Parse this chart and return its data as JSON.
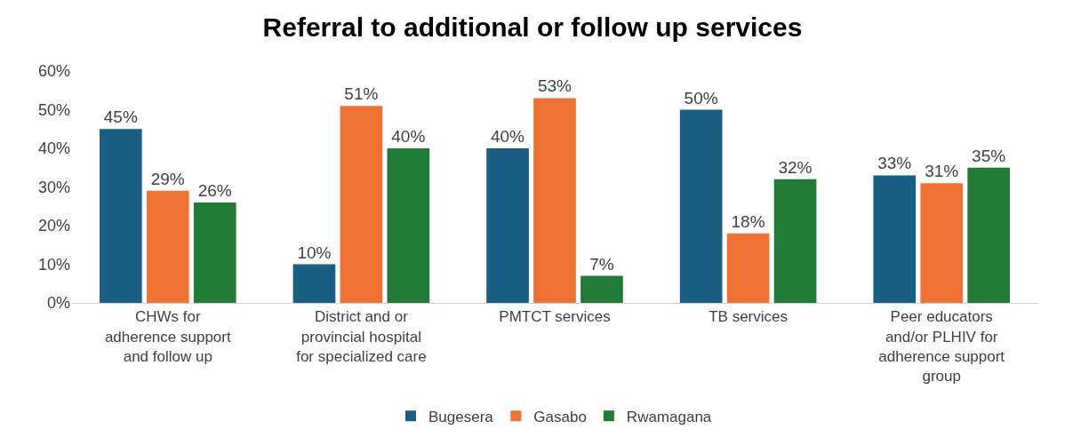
{
  "chart_data": {
    "type": "bar",
    "title": "Referral to additional or follow up services",
    "categories": [
      "CHWs for\nadherence support\nand follow up",
      "District and or\nprovincial hospital\nfor specialized care",
      "PMTCT services",
      "TB services",
      "Peer educators\nand/or PLHIV for\nadherence support\ngroup"
    ],
    "series": [
      {
        "name": "Bugesera",
        "color": "#1b5e84",
        "values": [
          45,
          10,
          40,
          50,
          33
        ],
        "value_labels": [
          "45%",
          "10%",
          "40%",
          "50%",
          "33%"
        ]
      },
      {
        "name": "Gasabo",
        "color": "#ed7233",
        "values": [
          29,
          51,
          53,
          18,
          31
        ],
        "value_labels": [
          "29%",
          "51%",
          "53%",
          "18%",
          "31%"
        ]
      },
      {
        "name": "Rwamagana",
        "color": "#217a35",
        "values": [
          26,
          40,
          7,
          32,
          35
        ],
        "value_labels": [
          "26%",
          "40%",
          "7%",
          "32%",
          "35%"
        ]
      }
    ],
    "ylim": [
      0,
      60
    ],
    "yticks": [
      {
        "value": 0,
        "label": "0%"
      },
      {
        "value": 10,
        "label": "10%"
      },
      {
        "value": 20,
        "label": "20%"
      },
      {
        "value": 30,
        "label": "30%"
      },
      {
        "value": 40,
        "label": "40%"
      },
      {
        "value": 50,
        "label": "50%"
      },
      {
        "value": 60,
        "label": "60%"
      }
    ],
    "grid": false,
    "legend": "bottom"
  }
}
